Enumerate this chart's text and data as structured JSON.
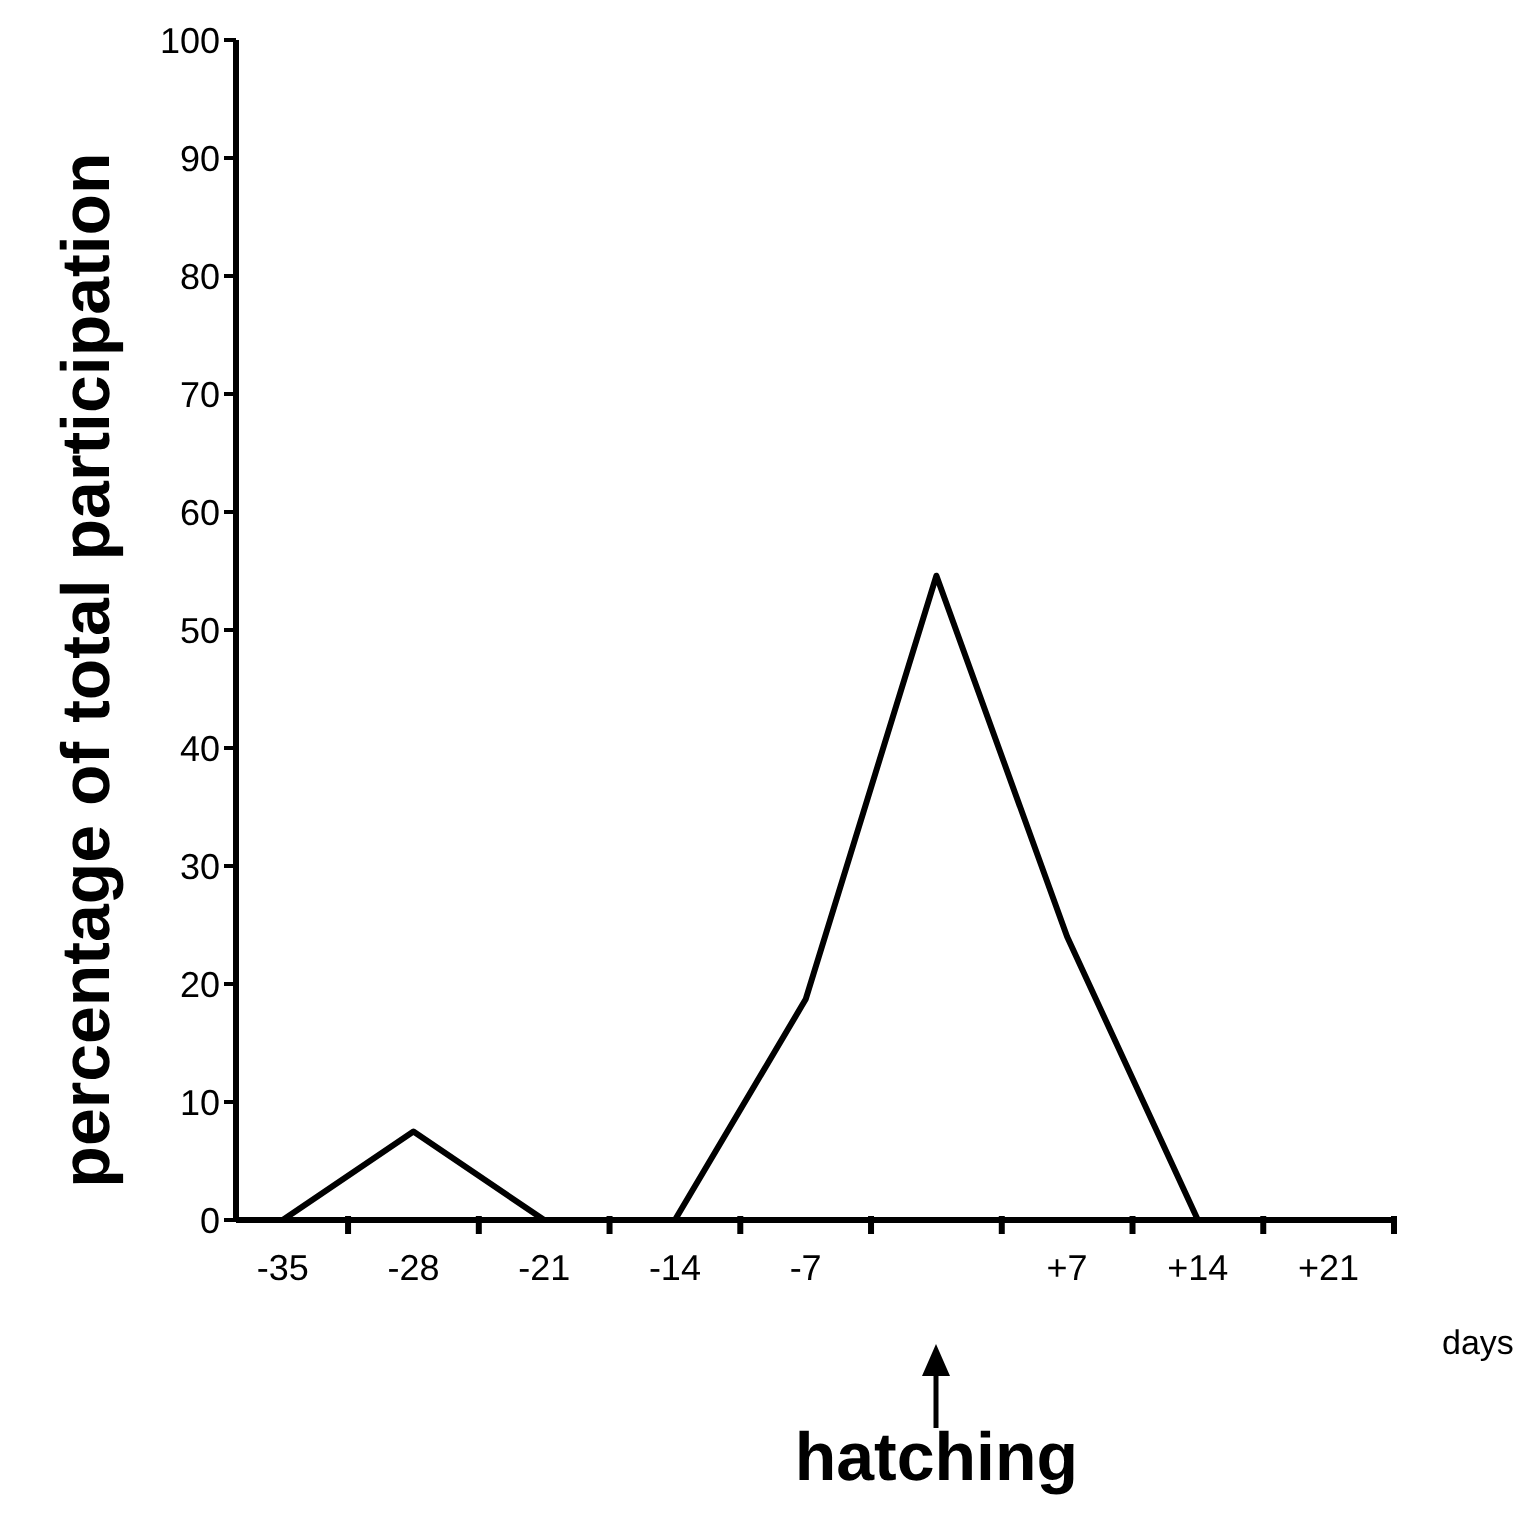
{
  "chart_data": {
    "type": "line",
    "ylabel": "percentage of total participation",
    "xlabel": "days",
    "x": [
      -35,
      -28,
      -21,
      -14,
      -7,
      0,
      7,
      14
    ],
    "series": [
      {
        "color": "#000000",
        "values": [
          0,
          7.5,
          0,
          0,
          18.7,
          54.6,
          24,
          0
        ]
      }
    ],
    "xlim": [
      -37.5,
      24.5
    ],
    "xticks": [
      -35,
      {
        "value": -31.5,
        "label": null
      },
      -28,
      {
        "value": -24.5,
        "label": null
      },
      -21,
      {
        "value": -17.5,
        "label": null
      },
      -14,
      {
        "value": -10.5,
        "label": null
      },
      -7,
      {
        "value": -3.5,
        "label": null
      },
      {
        "value": 3.5,
        "label": null
      },
      {
        "value": 7,
        "label": "+7"
      },
      {
        "value": 10.5,
        "label": null
      },
      {
        "value": 14,
        "label": "+14"
      },
      {
        "value": 17.5,
        "label": null
      },
      {
        "value": 21,
        "label": "+21"
      },
      {
        "value": 24.5,
        "label": null
      }
    ],
    "ylim": [
      0,
      100
    ],
    "yticks": [
      0,
      10,
      20,
      30,
      40,
      50,
      60,
      70,
      80,
      90,
      100
    ],
    "grid": false,
    "legend": false,
    "marker": "none",
    "line_style": "solid",
    "annotations": [
      "hatching"
    ]
  }
}
